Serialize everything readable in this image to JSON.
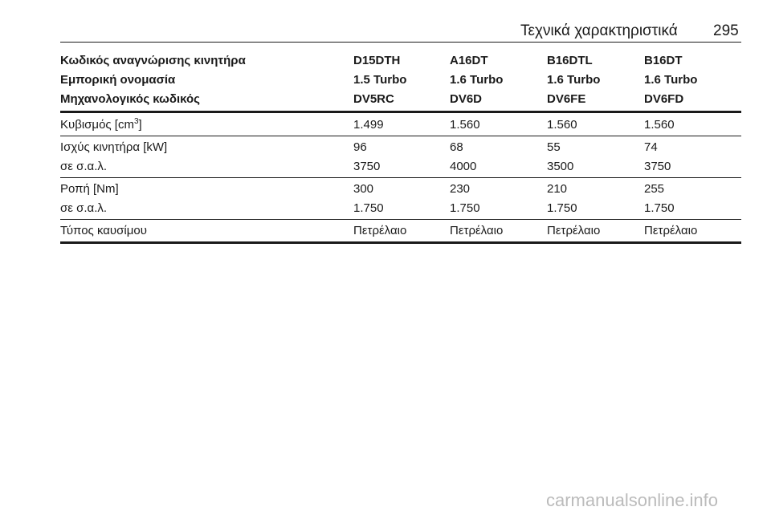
{
  "header": {
    "title": "Τεχνικά χαρακτηριστικά",
    "page": "295"
  },
  "table": {
    "head": [
      [
        "Κωδικός αναγνώρισης κινητήρα",
        "D15DTH",
        "A16DT",
        "B16DTL",
        "B16DT"
      ],
      [
        "Εμπορική ονομασία",
        "1.5 Turbo",
        "1.6 Turbo",
        "1.6 Turbo",
        "1.6 Turbo"
      ],
      [
        "Μηχανολογικός κωδικός",
        "DV5RC",
        "DV6D",
        "DV6FE",
        "DV6FD"
      ]
    ],
    "groups": [
      [
        [
          {
            "text": "Κυβισμός [cm",
            "sup": "3",
            "after": "]"
          },
          "1.499",
          "1.560",
          "1.560",
          "1.560"
        ]
      ],
      [
        [
          "Ισχύς κινητήρα [kW]",
          "96",
          "68",
          "55",
          "74"
        ],
        [
          "σε σ.α.λ.",
          "3750",
          "4000",
          "3500",
          "3750"
        ]
      ],
      [
        [
          "Ροπή [Nm]",
          "300",
          "230",
          "210",
          "255"
        ],
        [
          "σε σ.α.λ.",
          "1.750",
          "1.750",
          "1.750",
          "1.750"
        ]
      ],
      [
        [
          "Τύπος καυσίμου",
          "Πετρέλαιο",
          "Πετρέλαιο",
          "Πετρέλαιο",
          "Πετρέλαιο"
        ]
      ]
    ]
  },
  "watermark": "carmanualsonline.info"
}
